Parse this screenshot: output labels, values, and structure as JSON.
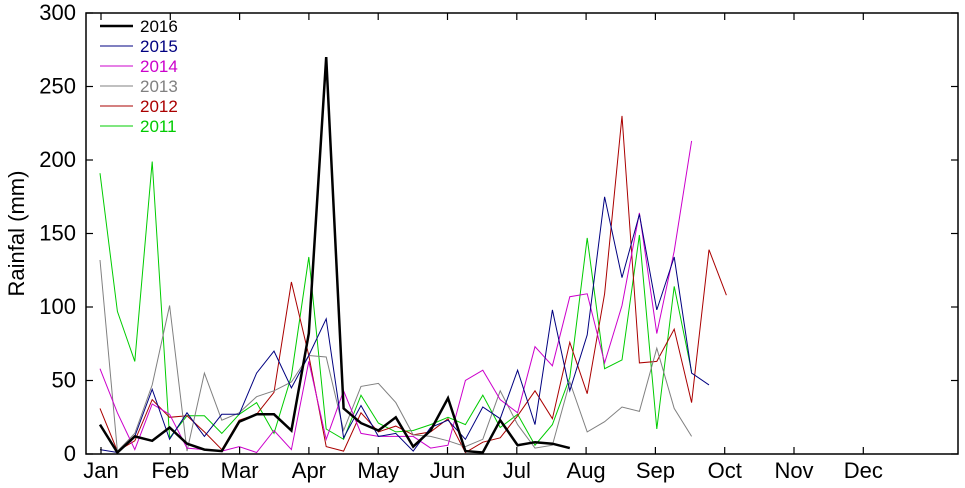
{
  "chart_data": {
    "type": "line",
    "title": "",
    "xlabel": "",
    "ylabel": "Rainfal (mm)",
    "ylim": [
      0,
      300
    ],
    "xlim": [
      0,
      48
    ],
    "y_ticks": [
      0,
      50,
      100,
      150,
      200,
      250,
      300
    ],
    "month_labels": [
      "Jan",
      "Feb",
      "Mar",
      "Apr",
      "May",
      "Jun",
      "Jul",
      "Aug",
      "Sep",
      "Oct",
      "Nov",
      "Dec"
    ],
    "grid": false,
    "legend_position": "top-left",
    "series": [
      {
        "name": "2016",
        "color": "#000000",
        "width": 2.5,
        "values": [
          20,
          1,
          12,
          9,
          18,
          7,
          3,
          2,
          22,
          27,
          27,
          16,
          82,
          270,
          31,
          21,
          16,
          25,
          5,
          16,
          38,
          2,
          1,
          23,
          6,
          8,
          7,
          4
        ]
      },
      {
        "name": "2015",
        "color": "#000080",
        "width": 1,
        "values": [
          3,
          1,
          12,
          44,
          10,
          28,
          12,
          27,
          27,
          55,
          70,
          45,
          67,
          92,
          11,
          33,
          12,
          14,
          2,
          18,
          23,
          10,
          32,
          24,
          57,
          20,
          98,
          43,
          81,
          175,
          120,
          163,
          98,
          134,
          55,
          47
        ]
      },
      {
        "name": "2014",
        "color": "#cc00cc",
        "width": 1,
        "values": [
          58,
          28,
          3,
          34,
          27,
          4,
          3,
          2,
          5,
          1,
          16,
          3,
          63,
          10,
          43,
          14,
          12,
          12,
          12,
          4,
          6,
          50,
          57,
          37,
          28,
          73,
          60,
          107,
          109,
          62,
          101,
          164,
          82,
          138,
          213
        ]
      },
      {
        "name": "2013",
        "color": "#808080",
        "width": 1,
        "values": [
          132,
          2,
          14,
          47,
          101,
          2,
          55,
          23,
          28,
          39,
          43,
          49,
          67,
          66,
          16,
          46,
          48,
          35,
          13,
          12,
          9,
          5,
          10,
          43,
          20,
          4,
          6,
          49,
          15,
          22,
          32,
          29,
          72,
          31,
          12
        ]
      },
      {
        "name": "2012",
        "color": "#aa0000",
        "width": 1,
        "values": [
          31,
          2,
          9,
          37,
          25,
          26,
          15,
          3,
          23,
          27,
          42,
          117,
          67,
          5,
          2,
          28,
          15,
          19,
          13,
          15,
          24,
          1,
          8,
          11,
          26,
          43,
          24,
          76,
          41,
          109,
          230,
          62,
          63,
          85,
          35,
          139,
          108
        ]
      },
      {
        "name": "2011",
        "color": "#00cc00",
        "width": 1,
        "values": [
          191,
          97,
          63,
          199,
          11,
          26,
          26,
          14,
          27,
          35,
          14,
          53,
          134,
          17,
          10,
          40,
          21,
          15,
          16,
          20,
          25,
          20,
          40,
          18,
          27,
          6,
          20,
          52,
          147,
          58,
          64,
          149,
          17,
          114,
          56
        ]
      }
    ]
  }
}
